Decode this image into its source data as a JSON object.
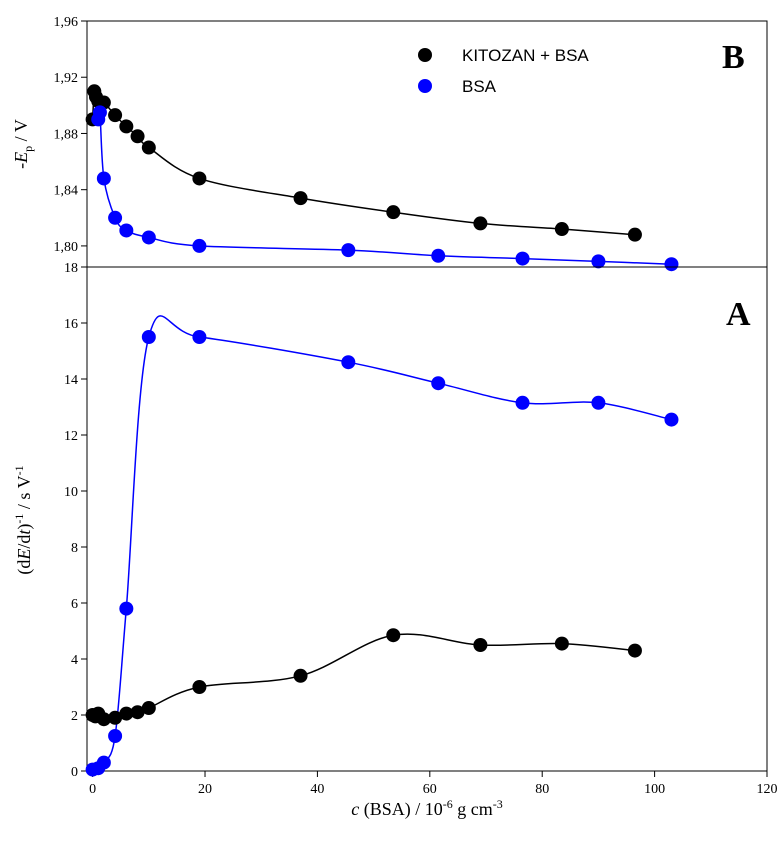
{
  "chart_data": [
    {
      "type": "scatter",
      "panel_label": "B",
      "ylabel": {
        "prefix": "-",
        "var": "E",
        "sub": "p",
        "suffix": " / V"
      },
      "ylim": [
        1.785,
        1.96
      ],
      "yticks": [
        1.8,
        1.84,
        1.88,
        1.92,
        1.96
      ],
      "ytick_labels": [
        "1,80",
        "1,84",
        "1,88",
        "1,92",
        "1,96"
      ],
      "xlim": [
        -1,
        120
      ],
      "legend": {
        "placement": "top-center",
        "entries": [
          "KITOZAN + BSA",
          "BSA"
        ]
      },
      "series": [
        {
          "name": "KITOZAN + BSA",
          "color": "#000000",
          "x": [
            0,
            0.3,
            0.6,
            1.0,
            2.0,
            4.0,
            6.0,
            8.0,
            10.0,
            19.0,
            37.0,
            53.5,
            69.0,
            83.5,
            96.5
          ],
          "y": [
            1.89,
            1.91,
            1.906,
            1.903,
            1.902,
            1.893,
            1.885,
            1.878,
            1.87,
            1.848,
            1.834,
            1.824,
            1.816,
            1.812,
            1.808
          ]
        },
        {
          "name": "BSA",
          "color": "#0000ff",
          "x": [
            1.0,
            1.3,
            2.0,
            4.0,
            6.0,
            10.0,
            19.0,
            45.5,
            61.5,
            76.5,
            90.0,
            103.0
          ],
          "y": [
            1.89,
            1.895,
            1.848,
            1.82,
            1.811,
            1.806,
            1.8,
            1.797,
            1.793,
            1.791,
            1.789,
            1.787
          ]
        }
      ]
    },
    {
      "type": "scatter",
      "panel_label": "A",
      "ylabel": {
        "prefix": "(d",
        "var1": "E",
        "mid": "/d",
        "var2": "t",
        "sup1": "-1",
        "after": ")",
        "suffix": " / s V",
        "sup2": "-1"
      },
      "ylim": [
        0,
        18
      ],
      "yticks": [
        0,
        2,
        4,
        6,
        8,
        10,
        12,
        14,
        16,
        18
      ],
      "ytick_labels": [
        "0",
        "2",
        "4",
        "6",
        "8",
        "10",
        "12",
        "14",
        "16",
        "18"
      ],
      "xlim": [
        -1,
        120
      ],
      "xticks": [
        0,
        20,
        40,
        60,
        80,
        100,
        120
      ],
      "xtick_labels": [
        "0",
        "20",
        "40",
        "60",
        "80",
        "100",
        "120"
      ],
      "xlabel": {
        "var": "c",
        "mid": " (BSA) / 10",
        "sup1": "-6",
        "unit": " g cm",
        "sup2": "-3"
      },
      "series": [
        {
          "name": "KITOZAN + BSA",
          "color": "#000000",
          "x": [
            0,
            0.5,
            1.0,
            2.0,
            4.0,
            6.0,
            8.0,
            10.0,
            19.0,
            37.0,
            53.5,
            69.0,
            83.5,
            96.5
          ],
          "y": [
            2.0,
            1.95,
            2.05,
            1.85,
            1.9,
            2.05,
            2.1,
            2.25,
            3.0,
            3.4,
            4.85,
            4.5,
            4.55,
            4.3
          ]
        },
        {
          "name": "BSA",
          "color": "#0000ff",
          "x": [
            0,
            1.0,
            2.0,
            4.0,
            6.0,
            10.0,
            19.0,
            45.5,
            61.5,
            76.5,
            90.0,
            103.0
          ],
          "y": [
            0.05,
            0.1,
            0.3,
            1.25,
            5.8,
            15.5,
            15.5,
            14.6,
            13.85,
            13.15,
            13.15,
            12.55
          ]
        }
      ]
    }
  ]
}
